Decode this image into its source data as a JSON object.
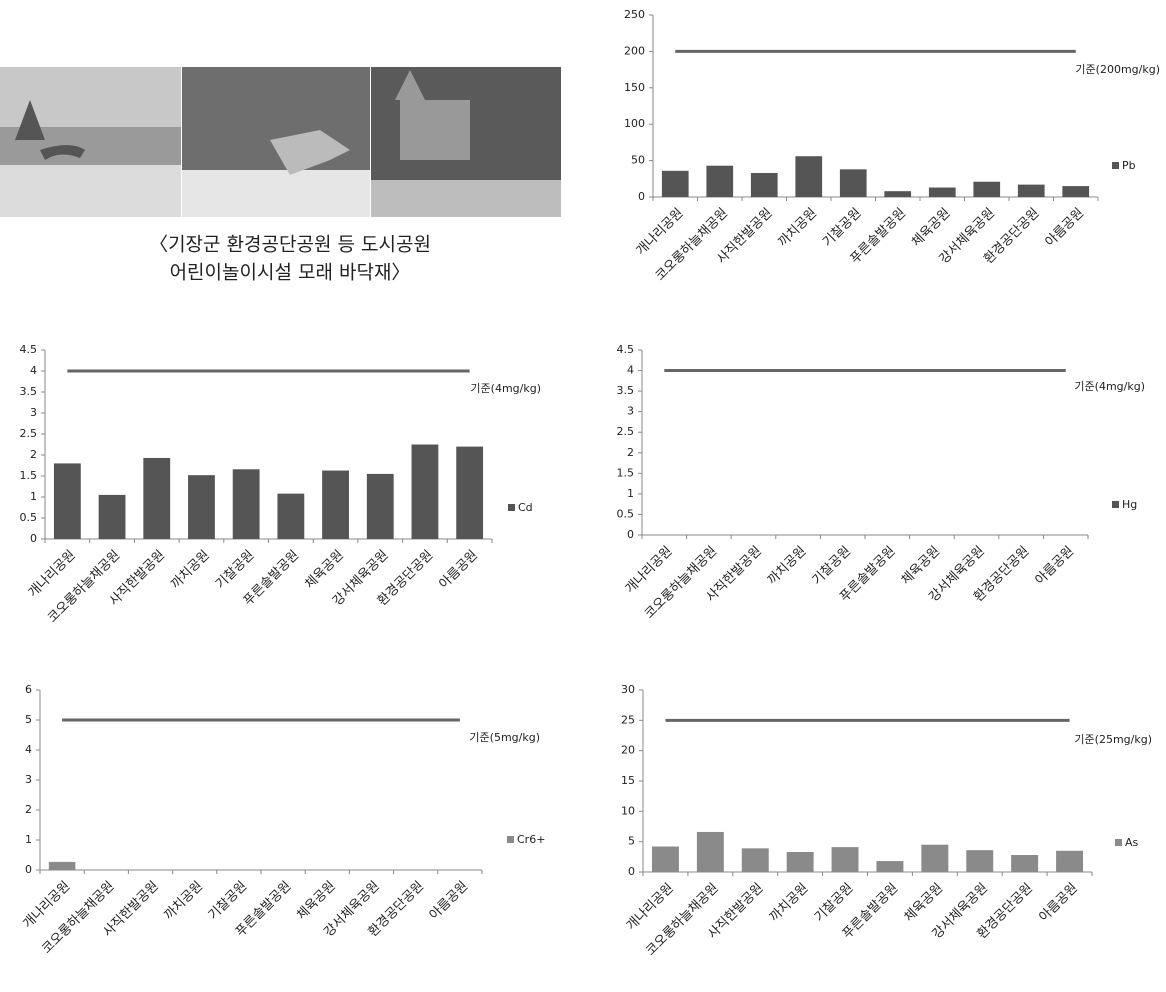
{
  "caption": {
    "lines": [
      "〈기장군 환경공단공원 등 도시공원",
      "어린이놀이시설 모래 바닥재〉"
    ]
  },
  "chart_data": [
    {
      "type": "bar",
      "categories": [
        "개나리공원",
        "코오롱하늘채공원",
        "사직한발공원",
        "까치공원",
        "기찰공원",
        "푸른솔발공원",
        "체육공원",
        "강서체육공원",
        "환경공단공원",
        "아름공원"
      ],
      "series": [
        {
          "name": "Pb",
          "color": "#555555",
          "values": [
            36,
            43,
            33,
            56,
            38,
            8,
            13,
            21,
            17,
            15
          ]
        }
      ],
      "ylim": [
        0,
        250
      ],
      "yticks": [
        0,
        50,
        100,
        150,
        200,
        250
      ],
      "reference_line": {
        "value": 200,
        "label": "기준(200mg/kg)"
      },
      "legend": "right"
    },
    {
      "type": "bar",
      "categories": [
        "개나리공원",
        "코오롱하늘채공원",
        "사직한발공원",
        "까치공원",
        "기찰공원",
        "푸른솔발공원",
        "체육공원",
        "강서체육공원",
        "환경공단공원",
        "아름공원"
      ],
      "series": [
        {
          "name": "Cd",
          "color": "#555555",
          "values": [
            1.8,
            1.05,
            1.93,
            1.52,
            1.66,
            1.08,
            1.63,
            1.55,
            2.25,
            2.2
          ]
        }
      ],
      "ylim": [
        0,
        4.5
      ],
      "yticks": [
        0,
        0.5,
        1,
        1.5,
        2,
        2.5,
        3,
        3.5,
        4,
        4.5
      ],
      "reference_line": {
        "value": 4,
        "label": "기준(4mg/kg)"
      },
      "legend": "right"
    },
    {
      "type": "bar",
      "categories": [
        "개나리공원",
        "코오롱하늘채공원",
        "사직한발공원",
        "까치공원",
        "기찰공원",
        "푸른솔발공원",
        "체육공원",
        "강서체육공원",
        "환경공단공원",
        "아름공원"
      ],
      "series": [
        {
          "name": "Hg",
          "color": "#555555",
          "values": [
            0,
            0,
            0,
            0,
            0,
            0,
            0,
            0,
            0,
            0
          ]
        }
      ],
      "ylim": [
        0,
        4.5
      ],
      "yticks": [
        0,
        0.5,
        1,
        1.5,
        2,
        2.5,
        3,
        3.5,
        4,
        4.5
      ],
      "reference_line": {
        "value": 4,
        "label": "기준(4mg/kg)"
      },
      "legend": "right"
    },
    {
      "type": "bar",
      "categories": [
        "개나리공원",
        "코오롱하늘채공원",
        "사직한발공원",
        "까치공원",
        "기찰공원",
        "푸른솔발공원",
        "체육공원",
        "강서체육공원",
        "환경공단공원",
        "아름공원"
      ],
      "series": [
        {
          "name": "Cr6+",
          "color": "#8a8a8a",
          "values": [
            0.27,
            0,
            0,
            0,
            0,
            0,
            0,
            0,
            0,
            0
          ]
        }
      ],
      "ylim": [
        0,
        6
      ],
      "yticks": [
        0,
        1,
        2,
        3,
        4,
        5,
        6
      ],
      "reference_line": {
        "value": 5,
        "label": "기준(5mg/kg)"
      },
      "legend": "right"
    },
    {
      "type": "bar",
      "categories": [
        "개나리공원",
        "코오롱하늘채공원",
        "사직한발공원",
        "까치공원",
        "기찰공원",
        "푸른솔발공원",
        "체육공원",
        "강서체육공원",
        "환경공단공원",
        "아름공원"
      ],
      "series": [
        {
          "name": "As",
          "color": "#8a8a8a",
          "values": [
            4.2,
            6.6,
            3.9,
            3.3,
            4.1,
            1.8,
            4.5,
            3.6,
            2.8,
            3.5
          ]
        }
      ],
      "ylim": [
        0,
        30
      ],
      "yticks": [
        0,
        5,
        10,
        15,
        20,
        25,
        30
      ],
      "reference_line": {
        "value": 25,
        "label": "기준(25mg/kg)"
      },
      "legend": "right"
    }
  ]
}
